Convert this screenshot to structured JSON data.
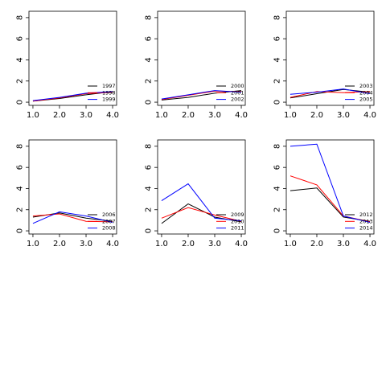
{
  "chart_data": [
    {
      "type": "line",
      "x": [
        1.0,
        2.0,
        3.0,
        4.0
      ],
      "xticks": [
        "1.0",
        "2.0",
        "3.0",
        "4.0"
      ],
      "yticks": [
        "0",
        "2",
        "4",
        "6",
        "8"
      ],
      "xlim": [
        0.85,
        4.15
      ],
      "ylim": [
        -0.3,
        8.6
      ],
      "grid": false,
      "legend_position": "lower-right",
      "series": [
        {
          "name": "1997",
          "color": "#000000",
          "values": [
            0.1,
            0.35,
            0.7,
            1.0
          ]
        },
        {
          "name": "1998",
          "color": "#ff0000",
          "values": [
            0.1,
            0.4,
            0.8,
            0.95
          ]
        },
        {
          "name": "1999",
          "color": "#0000ff",
          "values": [
            0.15,
            0.45,
            0.85,
            1.0
          ]
        }
      ]
    },
    {
      "type": "line",
      "x": [
        1.0,
        2.0,
        3.0,
        4.0
      ],
      "xticks": [
        "1.0",
        "2.0",
        "3.0",
        "4.0"
      ],
      "yticks": [
        "0",
        "2",
        "4",
        "6",
        "8"
      ],
      "xlim": [
        0.85,
        4.15
      ],
      "ylim": [
        -0.3,
        8.6
      ],
      "grid": false,
      "legend_position": "lower-right",
      "series": [
        {
          "name": "2000",
          "color": "#000000",
          "values": [
            0.2,
            0.45,
            0.85,
            1.1
          ]
        },
        {
          "name": "2001",
          "color": "#ff0000",
          "values": [
            0.25,
            0.65,
            1.05,
            1.0
          ]
        },
        {
          "name": "2002",
          "color": "#0000ff",
          "values": [
            0.3,
            0.7,
            1.1,
            0.95
          ]
        }
      ]
    },
    {
      "type": "line",
      "x": [
        1.0,
        2.0,
        3.0,
        4.0
      ],
      "xticks": [
        "1.0",
        "2.0",
        "3.0",
        "4.0"
      ],
      "yticks": [
        "0",
        "2",
        "4",
        "6",
        "8"
      ],
      "xlim": [
        0.85,
        4.15
      ],
      "ylim": [
        -0.3,
        8.6
      ],
      "grid": false,
      "legend_position": "lower-right",
      "series": [
        {
          "name": "2003",
          "color": "#000000",
          "values": [
            0.4,
            0.8,
            1.2,
            0.95
          ]
        },
        {
          "name": "2004",
          "color": "#ff0000",
          "values": [
            0.45,
            1.0,
            0.9,
            1.0
          ]
        },
        {
          "name": "2005",
          "color": "#0000ff",
          "values": [
            0.75,
            0.95,
            1.25,
            0.8
          ]
        }
      ]
    },
    {
      "type": "line",
      "x": [
        1.0,
        2.0,
        3.0,
        4.0
      ],
      "xticks": [
        "1.0",
        "2.0",
        "3.0",
        "4.0"
      ],
      "yticks": [
        "0",
        "2",
        "4",
        "6",
        "8"
      ],
      "xlim": [
        0.85,
        4.15
      ],
      "ylim": [
        -0.3,
        8.6
      ],
      "grid": false,
      "legend_position": "lower-right",
      "series": [
        {
          "name": "2006",
          "color": "#000000",
          "values": [
            1.3,
            1.7,
            1.2,
            0.9
          ]
        },
        {
          "name": "2007",
          "color": "#ff0000",
          "values": [
            1.4,
            1.6,
            0.9,
            0.85
          ]
        },
        {
          "name": "2008",
          "color": "#0000ff",
          "values": [
            0.7,
            1.8,
            1.4,
            0.8
          ]
        }
      ]
    },
    {
      "type": "line",
      "x": [
        1.0,
        2.0,
        3.0,
        4.0
      ],
      "xticks": [
        "1.0",
        "2.0",
        "3.0",
        "4.0"
      ],
      "yticks": [
        "0",
        "2",
        "4",
        "6",
        "8"
      ],
      "xlim": [
        0.85,
        4.15
      ],
      "ylim": [
        -0.3,
        8.6
      ],
      "grid": false,
      "legend_position": "lower-right",
      "series": [
        {
          "name": "2009",
          "color": "#000000",
          "values": [
            0.7,
            2.55,
            1.3,
            0.85
          ]
        },
        {
          "name": "2010",
          "color": "#ff0000",
          "values": [
            1.2,
            2.2,
            1.5,
            0.9
          ]
        },
        {
          "name": "2011",
          "color": "#0000ff",
          "values": [
            2.85,
            4.45,
            1.2,
            0.95
          ]
        }
      ]
    },
    {
      "type": "line",
      "x": [
        1.0,
        2.0,
        3.0,
        4.0
      ],
      "xticks": [
        "1.0",
        "2.0",
        "3.0",
        "4.0"
      ],
      "yticks": [
        "0",
        "2",
        "4",
        "6",
        "8"
      ],
      "xlim": [
        0.85,
        4.15
      ],
      "ylim": [
        -0.3,
        8.6
      ],
      "grid": false,
      "legend_position": "lower-right",
      "series": [
        {
          "name": "2012",
          "color": "#000000",
          "values": [
            3.8,
            4.05,
            1.3,
            0.9
          ]
        },
        {
          "name": "2013",
          "color": "#ff0000",
          "values": [
            5.2,
            4.35,
            1.4,
            0.85
          ]
        },
        {
          "name": "2014",
          "color": "#0000ff",
          "values": [
            8.0,
            8.2,
            1.4,
            0.8
          ]
        }
      ]
    }
  ]
}
